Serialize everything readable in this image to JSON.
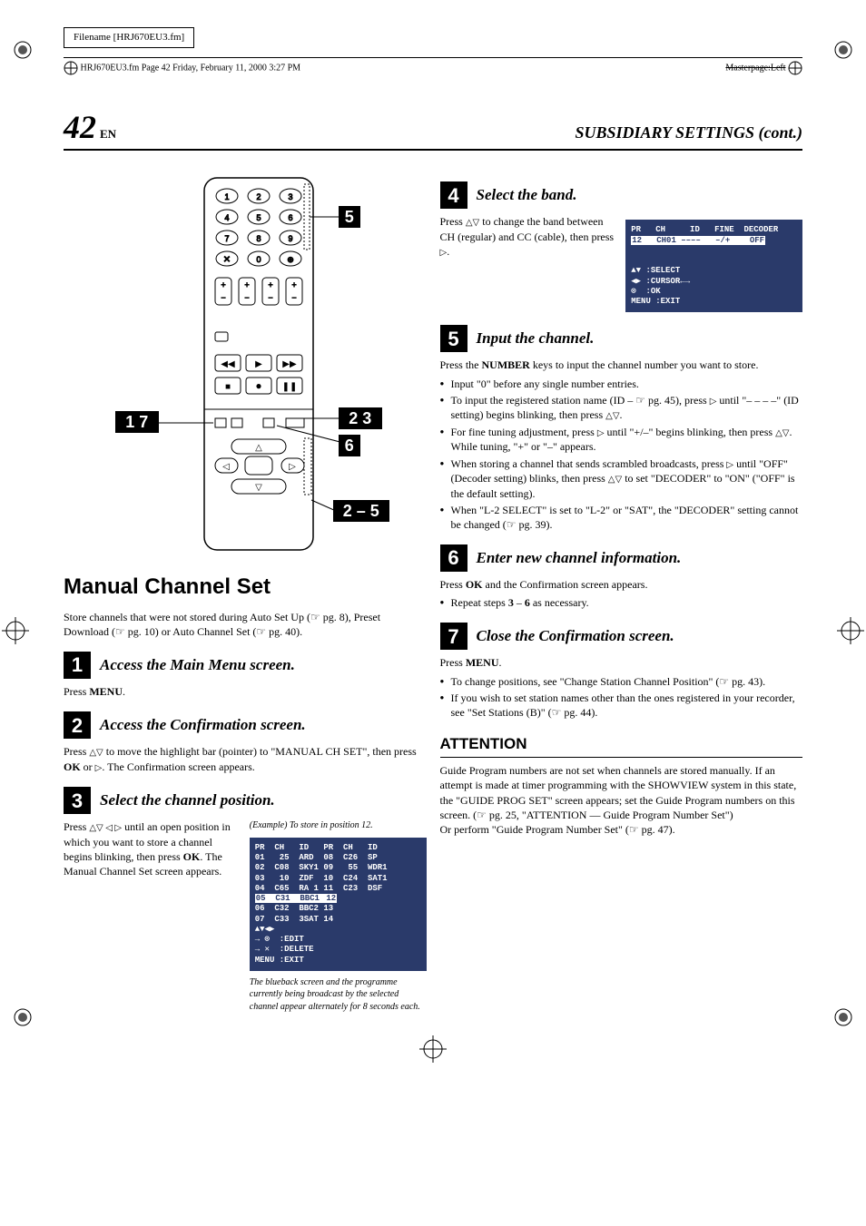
{
  "meta": {
    "filename_label": "Filename [HRJ670EU3.fm]",
    "header_left": "HRJ670EU3.fm  Page 42  Friday, February 11, 2000  3:27 PM",
    "header_right": "Masterpage:Left"
  },
  "page": {
    "number": "42",
    "lang": "EN",
    "section_title": "SUBSIDIARY SETTINGS (cont.)"
  },
  "remote_callouts": {
    "left_top": "1 7",
    "right_a": "5",
    "right_b": "2 3",
    "right_c": "6",
    "right_d": "2 – 5"
  },
  "left": {
    "main_heading": "Manual Channel Set",
    "intro_text": "Store channels that were not stored during Auto Set Up (☞ pg. 8), Preset Download (☞ pg. 10) or Auto Channel Set (☞ pg. 40).",
    "steps": [
      {
        "n": "1",
        "title": "Access the Main Menu screen.",
        "body_html": "Press <strong>MENU</strong>."
      },
      {
        "n": "2",
        "title": "Access the Confirmation screen.",
        "body_html": "Press <span class='tri'>△▽</span> to move the highlight bar (pointer) to \"MANUAL CH SET\", then press <strong>OK</strong> or <span class='tri'>▷</span>. The Confirmation screen appears."
      },
      {
        "n": "3",
        "title": "Select the channel position.",
        "body_html": "Press <span class='tri'>△▽ ◁ ▷</span> until an open position in which you want to store a channel begins blinking, then press <strong>OK</strong>. The Manual Channel Set screen appears."
      }
    ],
    "example_caption": "(Example) To store in position 12.",
    "osd_table": {
      "header": "PR  CH   ID   PR  CH   ID",
      "rows": [
        "01   25  ARD  08  C26  SP",
        "02  C08  SKY1 09   55  WDR1",
        "03   10  ZDF  10  C24  SAT1",
        "04  C65  RA 1 11  C23  DSF",
        "05  C31  BBC1 12",
        "06  C32  BBC2 13",
        "07  C33  3SAT 14"
      ],
      "highlight_row_index": 4,
      "footer": "▲▼◀▶\n→ ⊙  :EDIT\n→ ✕  :DELETE\nMENU :EXIT"
    },
    "after_caption": "The blueback screen and the programme currently being broadcast by the selected channel appear alternately for 8 seconds each."
  },
  "right": {
    "steps": [
      {
        "n": "4",
        "title": "Select the band.",
        "body_html": "Press <span class='tri'>△▽</span> to change the band between CH (regular) and CC (cable), then press <span class='tri'>▷</span>.",
        "has_osd": true
      },
      {
        "n": "5",
        "title": "Input the channel.",
        "body_html": "Press the <strong>NUMBER</strong> keys to input the channel number you want to store.",
        "bullets": [
          "Input \"0\" before any single number entries.",
          "To input the registered station name (ID – ☞ pg. 45), press <span class='tri'>▷</span> until \"– – – –\" (ID setting) begins blinking, then press <span class='tri'>△▽</span>.",
          "For fine tuning adjustment, press <span class='tri'>▷</span> until \"+/–\" begins blinking, then press <span class='tri'>△▽</span>. While tuning, \"+\" or \"–\" appears.",
          "When storing a channel that sends scrambled broadcasts, press <span class='tri'>▷</span> until \"OFF\" (Decoder setting) blinks, then press <span class='tri'>△▽</span> to set \"DECODER\" to \"ON\" (\"OFF\" is the default setting).",
          "When \"L-2 SELECT\" is set to \"L-2\" or \"SAT\", the \"DECODER\" setting cannot be changed (☞ pg. 39)."
        ]
      },
      {
        "n": "6",
        "title": "Enter new channel information.",
        "body_html": "Press <strong>OK</strong> and the Confirmation screen appears.",
        "bullets": [
          "Repeat steps <strong>3</strong> – <strong>6</strong> as necessary."
        ]
      },
      {
        "n": "7",
        "title": "Close the Confirmation screen.",
        "body_html": "Press <strong>MENU</strong>.",
        "bullets": [
          "To change positions, see \"Change Station Channel Position\" (☞ pg. 43).",
          "If you wish to set station names other than the ones registered in your recorder, see \"Set Stations (B)\" (☞ pg. 44)."
        ]
      }
    ],
    "osd_band": {
      "header": "PR   CH     ID   FINE  DECODER",
      "row": "12   CH01 ––––   –/+    OFF",
      "footer": "▲▼ :SELECT\n◀▶ :CURSOR←→\n⊙  :OK\nMENU :EXIT"
    },
    "attention_heading": "ATTENTION",
    "attention_body": "Guide Program numbers are not set when channels are stored manually. If an attempt is made at timer programming with the SHOWVIEW system in this state, the \"GUIDE PROG SET\" screen appears; set the Guide Program numbers on this screen. (☞ pg. 25, \"ATTENTION — Guide Program Number Set\")\nOr perform \"Guide Program Number Set\" (☞ pg. 47)."
  },
  "colors": {
    "osd_bg": "#2a3a6a",
    "osd_fg": "#ffffff",
    "black": "#000000"
  }
}
